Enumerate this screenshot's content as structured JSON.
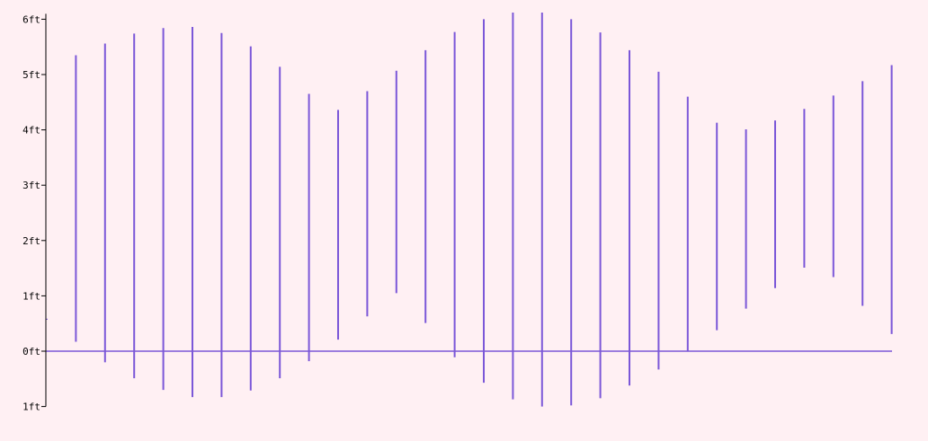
{
  "chart_data": {
    "type": "bar",
    "title": "",
    "xlabel": "",
    "ylabel": "",
    "ylim": [
      -1,
      6
    ],
    "grid": false,
    "legend": "none",
    "y_ticks": [
      {
        "value": 6,
        "label": "6ft"
      },
      {
        "value": 5,
        "label": "5ft"
      },
      {
        "value": 4,
        "label": "4ft"
      },
      {
        "value": 3,
        "label": "3ft"
      },
      {
        "value": 2,
        "label": "2ft"
      },
      {
        "value": 1,
        "label": "1ft"
      },
      {
        "value": 0,
        "label": "0ft"
      },
      {
        "value": -1,
        "label": "1ft"
      }
    ],
    "series": [
      {
        "color": "#7b57d8",
        "ranges": [
          [
            0.57,
            0.57
          ],
          [
            0.17,
            5.35
          ],
          [
            -0.2,
            5.56
          ],
          [
            -0.49,
            5.74
          ],
          [
            -0.7,
            5.84
          ],
          [
            -0.83,
            5.86
          ],
          [
            -0.83,
            5.75
          ],
          [
            -0.71,
            5.51
          ],
          [
            -0.49,
            5.14
          ],
          [
            -0.18,
            4.65
          ],
          [
            0.21,
            4.36
          ],
          [
            0.63,
            4.7
          ],
          [
            1.05,
            5.07
          ],
          [
            0.51,
            5.44
          ],
          [
            -0.11,
            5.77
          ],
          [
            -0.57,
            6.0
          ],
          [
            -0.87,
            6.12
          ],
          [
            -1.0,
            6.12
          ],
          [
            -0.98,
            6.0
          ],
          [
            -0.85,
            5.76
          ],
          [
            -0.62,
            5.44
          ],
          [
            -0.33,
            5.05
          ],
          [
            0.0,
            4.6
          ],
          [
            0.38,
            4.13
          ],
          [
            0.77,
            4.01
          ],
          [
            1.14,
            4.17
          ],
          [
            1.51,
            4.38
          ],
          [
            1.34,
            4.62
          ],
          [
            0.82,
            4.88
          ],
          [
            0.31,
            5.17
          ]
        ]
      }
    ]
  }
}
